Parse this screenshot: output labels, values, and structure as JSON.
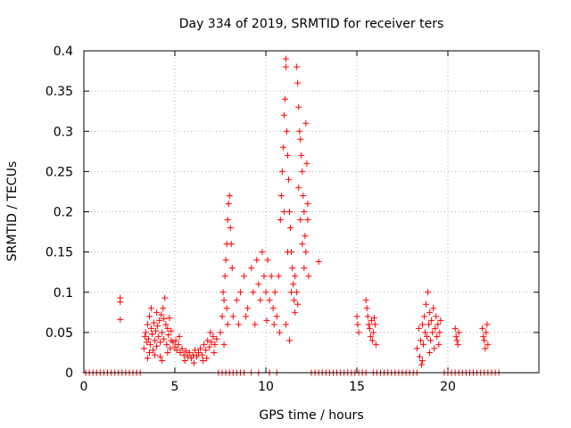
{
  "chart_data": {
    "type": "scatter",
    "title": "Day 334 of 2019, SRMTID for receiver ters",
    "xlabel": "GPS time / hours",
    "ylabel": "SRMTID / TECUs",
    "xlim": [
      0,
      25
    ],
    "ylim": [
      0,
      0.4
    ],
    "grid": true,
    "marker": "+",
    "color": "#ff0000",
    "x_ticks": [
      {
        "value": 0,
        "label": "0"
      },
      {
        "value": 5,
        "label": "5"
      },
      {
        "value": 10,
        "label": "10"
      },
      {
        "value": 15,
        "label": "15"
      },
      {
        "value": 20,
        "label": "20"
      }
    ],
    "y_ticks": [
      {
        "value": 0,
        "label": "0"
      },
      {
        "value": 0.05,
        "label": "0.05"
      },
      {
        "value": 0.1,
        "label": "0.1"
      },
      {
        "value": 0.15,
        "label": "0.15"
      },
      {
        "value": 0.2,
        "label": "0.2"
      },
      {
        "value": 0.25,
        "label": "0.25"
      },
      {
        "value": 0.3,
        "label": "0.3"
      },
      {
        "value": 0.35,
        "label": "0.35"
      },
      {
        "value": 0.4,
        "label": "0.4"
      }
    ],
    "series": [
      {
        "name": "SRMTID",
        "points": [
          [
            0.1,
            0
          ],
          [
            0.3,
            0
          ],
          [
            0.5,
            0
          ],
          [
            0.7,
            0
          ],
          [
            0.9,
            0
          ],
          [
            1.1,
            0
          ],
          [
            1.3,
            0
          ],
          [
            1.5,
            0
          ],
          [
            1.7,
            0
          ],
          [
            1.9,
            0
          ],
          [
            2.1,
            0
          ],
          [
            2.3,
            0
          ],
          [
            2.5,
            0
          ],
          [
            2.7,
            0
          ],
          [
            2.9,
            0
          ],
          [
            3.1,
            0
          ],
          [
            2.0,
            0.093
          ],
          [
            2.0,
            0.088
          ],
          [
            2.0,
            0.066
          ],
          [
            3.3,
            0.03
          ],
          [
            3.35,
            0.045
          ],
          [
            3.4,
            0.05
          ],
          [
            3.45,
            0.038
          ],
          [
            3.5,
            0.06
          ],
          [
            3.55,
            0.042
          ],
          [
            3.6,
            0.07
          ],
          [
            3.65,
            0.035
          ],
          [
            3.7,
            0.055
          ],
          [
            3.75,
            0.048
          ],
          [
            3.8,
            0.028
          ],
          [
            3.85,
            0.062
          ],
          [
            3.9,
            0.04
          ],
          [
            3.95,
            0.052
          ],
          [
            4.0,
            0.033
          ],
          [
            4.05,
            0.058
          ],
          [
            4.1,
            0.045
          ],
          [
            4.15,
            0.065
          ],
          [
            4.2,
            0.038
          ],
          [
            4.25,
            0.072
          ],
          [
            4.3,
            0.05
          ],
          [
            4.35,
            0.08
          ],
          [
            4.4,
            0.042
          ],
          [
            4.45,
            0.093
          ],
          [
            4.5,
            0.06
          ],
          [
            4.55,
            0.035
          ],
          [
            4.6,
            0.055
          ],
          [
            4.65,
            0.047
          ],
          [
            4.7,
            0.068
          ],
          [
            4.75,
            0.03
          ],
          [
            4.8,
            0.052
          ],
          [
            3.5,
            0.018
          ],
          [
            3.9,
            0.022
          ],
          [
            4.3,
            0.015
          ],
          [
            4.6,
            0.025
          ],
          [
            3.7,
            0.08
          ],
          [
            4.0,
            0.075
          ],
          [
            4.2,
            0.02
          ],
          [
            4.4,
            0.067
          ],
          [
            3.6,
            0.025
          ],
          [
            4.8,
            0.04
          ],
          [
            4.9,
            0.038
          ],
          [
            5.0,
            0.032
          ],
          [
            5.1,
            0.028
          ],
          [
            5.2,
            0.035
          ],
          [
            5.3,
            0.025
          ],
          [
            5.4,
            0.03
          ],
          [
            5.5,
            0.022
          ],
          [
            5.6,
            0.027
          ],
          [
            5.7,
            0.02
          ],
          [
            5.8,
            0.025
          ],
          [
            5.9,
            0.018
          ],
          [
            6.0,
            0.022
          ],
          [
            6.1,
            0.028
          ],
          [
            6.2,
            0.02
          ],
          [
            6.3,
            0.025
          ],
          [
            6.4,
            0.03
          ],
          [
            6.5,
            0.022
          ],
          [
            6.6,
            0.035
          ],
          [
            6.7,
            0.028
          ],
          [
            6.8,
            0.04
          ],
          [
            6.9,
            0.032
          ],
          [
            7.0,
            0.038
          ],
          [
            7.1,
            0.045
          ],
          [
            7.2,
            0.035
          ],
          [
            7.3,
            0.042
          ],
          [
            5.05,
            0.04
          ],
          [
            5.55,
            0.015
          ],
          [
            6.05,
            0.012
          ],
          [
            6.55,
            0.015
          ],
          [
            6.95,
            0.05
          ],
          [
            7.15,
            0.025
          ],
          [
            5.25,
            0.045
          ],
          [
            6.75,
            0.018
          ],
          [
            7.4,
            0.0
          ],
          [
            7.6,
            0.0
          ],
          [
            7.8,
            0.0
          ],
          [
            8.0,
            0.0
          ],
          [
            8.2,
            0.0
          ],
          [
            8.4,
            0.0
          ],
          [
            8.6,
            0.0
          ],
          [
            8.8,
            0.0
          ],
          [
            9.2,
            0.0
          ],
          [
            9.6,
            0.0
          ],
          [
            10.2,
            0.0
          ],
          [
            10.6,
            0.0
          ],
          [
            7.5,
            0.05
          ],
          [
            7.6,
            0.07
          ],
          [
            7.7,
            0.09
          ],
          [
            7.75,
            0.12
          ],
          [
            7.8,
            0.14
          ],
          [
            7.85,
            0.16
          ],
          [
            7.9,
            0.19
          ],
          [
            7.95,
            0.21
          ],
          [
            8.0,
            0.22
          ],
          [
            8.05,
            0.18
          ],
          [
            7.65,
            0.1
          ],
          [
            7.85,
            0.08
          ],
          [
            8.1,
            0.16
          ],
          [
            8.15,
            0.13
          ],
          [
            8.2,
            0.07
          ],
          [
            7.7,
            0.035
          ],
          [
            7.9,
            0.06
          ],
          [
            8.4,
            0.09
          ],
          [
            8.6,
            0.1
          ],
          [
            8.8,
            0.12
          ],
          [
            9.0,
            0.08
          ],
          [
            9.2,
            0.13
          ],
          [
            9.3,
            0.1
          ],
          [
            9.5,
            0.14
          ],
          [
            9.6,
            0.11
          ],
          [
            9.7,
            0.09
          ],
          [
            9.8,
            0.15
          ],
          [
            9.9,
            0.12
          ],
          [
            10.0,
            0.1
          ],
          [
            10.1,
            0.14
          ],
          [
            10.2,
            0.09
          ],
          [
            10.3,
            0.12
          ],
          [
            10.4,
            0.08
          ],
          [
            10.5,
            0.1
          ],
          [
            10.6,
            0.07
          ],
          [
            10.7,
            0.12
          ],
          [
            8.5,
            0.06
          ],
          [
            8.9,
            0.07
          ],
          [
            9.4,
            0.06
          ],
          [
            10.05,
            0.065
          ],
          [
            10.45,
            0.06
          ],
          [
            10.75,
            0.05
          ],
          [
            10.8,
            0.19
          ],
          [
            10.85,
            0.22
          ],
          [
            10.9,
            0.25
          ],
          [
            10.95,
            0.28
          ],
          [
            11.0,
            0.32
          ],
          [
            11.05,
            0.34
          ],
          [
            11.1,
            0.39
          ],
          [
            11.1,
            0.38
          ],
          [
            11.15,
            0.3
          ],
          [
            11.2,
            0.27
          ],
          [
            11.25,
            0.24
          ],
          [
            11.3,
            0.2
          ],
          [
            11.35,
            0.18
          ],
          [
            11.4,
            0.15
          ],
          [
            11.45,
            0.13
          ],
          [
            11.5,
            0.11
          ],
          [
            11.55,
            0.09
          ],
          [
            11.6,
            0.12
          ],
          [
            11.0,
            0.2
          ],
          [
            11.2,
            0.15
          ],
          [
            11.4,
            0.1
          ],
          [
            11.6,
            0.075
          ],
          [
            11.1,
            0.06
          ],
          [
            11.3,
            0.04
          ],
          [
            11.7,
            0.38
          ],
          [
            11.75,
            0.36
          ],
          [
            11.8,
            0.33
          ],
          [
            11.85,
            0.3
          ],
          [
            11.9,
            0.29
          ],
          [
            11.95,
            0.27
          ],
          [
            12.0,
            0.25
          ],
          [
            12.05,
            0.22
          ],
          [
            12.1,
            0.2
          ],
          [
            12.15,
            0.17
          ],
          [
            12.2,
            0.15
          ],
          [
            12.25,
            0.26
          ],
          [
            12.3,
            0.21
          ],
          [
            11.8,
            0.23
          ],
          [
            11.9,
            0.19
          ],
          [
            12.0,
            0.16
          ],
          [
            12.1,
            0.13
          ],
          [
            11.7,
            0.1
          ],
          [
            11.75,
            0.085
          ],
          [
            12.2,
            0.31
          ],
          [
            12.3,
            0.19
          ],
          [
            12.35,
            0.12
          ],
          [
            12.9,
            0.138
          ],
          [
            12.5,
            0
          ],
          [
            12.7,
            0
          ],
          [
            12.9,
            0
          ],
          [
            13.1,
            0
          ],
          [
            13.3,
            0
          ],
          [
            13.5,
            0
          ],
          [
            13.7,
            0
          ],
          [
            13.9,
            0
          ],
          [
            14.1,
            0
          ],
          [
            14.3,
            0
          ],
          [
            14.5,
            0
          ],
          [
            14.7,
            0
          ],
          [
            14.9,
            0
          ],
          [
            15.1,
            0
          ],
          [
            15.3,
            0
          ],
          [
            15.5,
            0
          ],
          [
            15.9,
            0
          ],
          [
            16.1,
            0
          ],
          [
            16.3,
            0
          ],
          [
            16.5,
            0
          ],
          [
            16.7,
            0
          ],
          [
            16.9,
            0
          ],
          [
            17.1,
            0
          ],
          [
            17.3,
            0
          ],
          [
            17.5,
            0
          ],
          [
            17.7,
            0
          ],
          [
            17.9,
            0
          ],
          [
            18.1,
            0
          ],
          [
            18.3,
            0
          ],
          [
            19.8,
            0
          ],
          [
            20.0,
            0
          ],
          [
            20.2,
            0
          ],
          [
            20.4,
            0
          ],
          [
            20.6,
            0
          ],
          [
            20.8,
            0
          ],
          [
            21.0,
            0
          ],
          [
            21.2,
            0
          ],
          [
            21.4,
            0
          ],
          [
            21.6,
            0
          ],
          [
            21.8,
            0
          ],
          [
            22.0,
            0
          ],
          [
            22.2,
            0
          ],
          [
            22.4,
            0
          ],
          [
            22.6,
            0
          ],
          [
            22.8,
            0
          ],
          [
            15.0,
            0.07
          ],
          [
            15.05,
            0.06
          ],
          [
            15.1,
            0.05
          ],
          [
            15.5,
            0.09
          ],
          [
            15.55,
            0.08
          ],
          [
            15.6,
            0.07
          ],
          [
            15.65,
            0.06
          ],
          [
            15.7,
            0.055
          ],
          [
            15.75,
            0.045
          ],
          [
            15.8,
            0.065
          ],
          [
            15.85,
            0.04
          ],
          [
            15.9,
            0.05
          ],
          [
            16.0,
            0.06
          ],
          [
            16.05,
            0.035
          ],
          [
            15.95,
            0.068
          ],
          [
            18.3,
            0.03
          ],
          [
            18.4,
            0.055
          ],
          [
            18.45,
            0.02
          ],
          [
            18.5,
            0.04
          ],
          [
            18.55,
            0.01
          ],
          [
            18.6,
            0.06
          ],
          [
            18.65,
            0.035
          ],
          [
            18.7,
            0.07
          ],
          [
            18.75,
            0.05
          ],
          [
            18.8,
            0.085
          ],
          [
            18.85,
            0.045
          ],
          [
            18.9,
            0.1
          ],
          [
            18.95,
            0.06
          ],
          [
            19.0,
            0.075
          ],
          [
            19.05,
            0.04
          ],
          [
            19.1,
            0.065
          ],
          [
            19.15,
            0.05
          ],
          [
            19.2,
            0.08
          ],
          [
            19.25,
            0.03
          ],
          [
            19.3,
            0.055
          ],
          [
            19.35,
            0.07
          ],
          [
            19.4,
            0.045
          ],
          [
            19.45,
            0.06
          ],
          [
            19.5,
            0.035
          ],
          [
            19.55,
            0.05
          ],
          [
            19.6,
            0.065
          ],
          [
            18.6,
            0.015
          ],
          [
            19.0,
            0.025
          ],
          [
            20.4,
            0.055
          ],
          [
            20.45,
            0.045
          ],
          [
            20.5,
            0.04
          ],
          [
            20.55,
            0.035
          ],
          [
            20.6,
            0.05
          ],
          [
            21.9,
            0.055
          ],
          [
            21.95,
            0.045
          ],
          [
            22.0,
            0.04
          ],
          [
            22.05,
            0.03
          ],
          [
            22.1,
            0.05
          ],
          [
            22.15,
            0.06
          ],
          [
            22.2,
            0.035
          ]
        ]
      }
    ]
  }
}
